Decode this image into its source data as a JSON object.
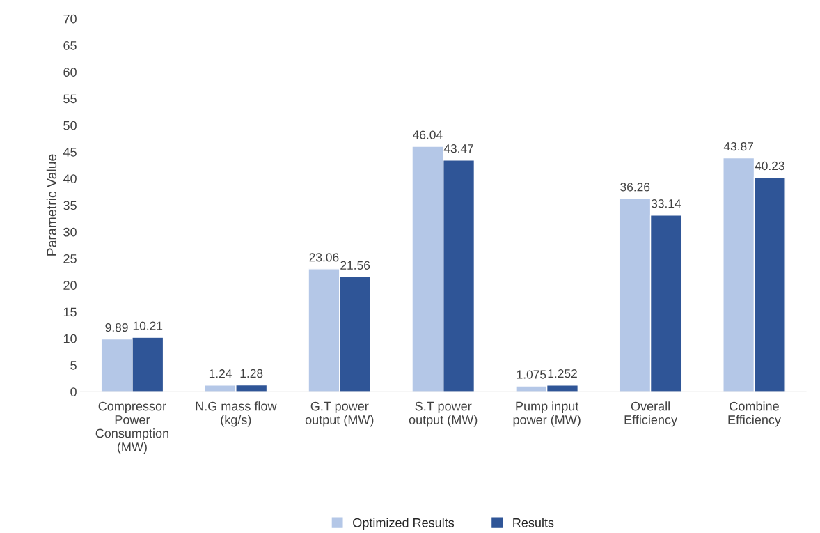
{
  "chart_data": {
    "type": "bar",
    "ylabel": "Parametric Value",
    "categories": [
      "Compressor\nPower\nConsumption\n(MW)",
      "N.G mass flow\n(kg/s)",
      "G.T power\noutput (MW)",
      "S.T power\noutput (MW)",
      "Pump input\npower (MW)",
      "Overall\nEfficiency",
      "Combine\nEfficiency"
    ],
    "series": [
      {
        "name": "Optimized Results",
        "color": "#b4c7e7",
        "values": [
          9.89,
          1.24,
          23.06,
          46.04,
          1.075,
          36.26,
          43.87
        ]
      },
      {
        "name": "Results",
        "color": "#2f5597",
        "values": [
          10.21,
          1.28,
          21.56,
          43.47,
          1.252,
          33.14,
          40.23
        ]
      }
    ],
    "ylim": [
      0,
      70
    ],
    "yticks": [
      0,
      5,
      10,
      15,
      20,
      25,
      30,
      35,
      40,
      45,
      50,
      55,
      60,
      65,
      70
    ],
    "data_labels": true,
    "grid": false,
    "legend": "bottom"
  }
}
